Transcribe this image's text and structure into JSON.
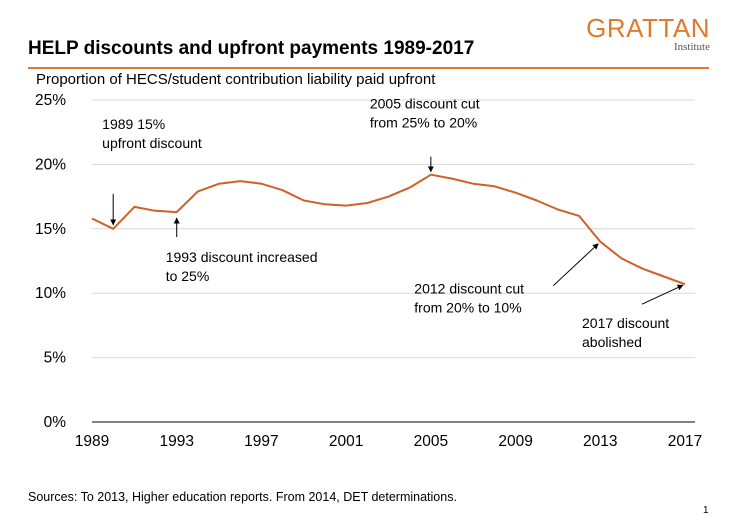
{
  "header": {
    "title": "HELP discounts and upfront payments 1989-2017",
    "subtitle": "Proportion of HECS/student contribution liability paid upfront",
    "logo_main": "GRATTAN",
    "logo_sub": "Institute"
  },
  "footer": {
    "source": "Sources: To 2013, Higher education reports. From 2014, DET determinations.",
    "page_number": "1"
  },
  "colors": {
    "line": "#d0602a",
    "accent": "#e07b2e",
    "gridline": "#d9d9d9"
  },
  "chart_data": {
    "type": "line",
    "title": "HELP discounts and upfront payments 1989-2017",
    "xlabel": "",
    "ylabel": "Proportion of HECS/student contribution liability paid upfront",
    "xlim": [
      1989,
      2017
    ],
    "ylim": [
      0,
      25
    ],
    "x_ticks": [
      "1989",
      "1993",
      "1997",
      "2001",
      "2005",
      "2009",
      "2013",
      "2017"
    ],
    "y_ticks": [
      "0%",
      "5%",
      "10%",
      "15%",
      "20%",
      "25%"
    ],
    "grid": "horizontal",
    "x": [
      1989,
      1990,
      1991,
      1992,
      1993,
      1994,
      1995,
      1996,
      1997,
      1998,
      1999,
      2000,
      2001,
      2002,
      2003,
      2004,
      2005,
      2006,
      2007,
      2008,
      2009,
      2010,
      2011,
      2012,
      2013,
      2014,
      2015,
      2016,
      2017
    ],
    "series": [
      {
        "values": [
          15.8,
          15.0,
          16.7,
          16.4,
          16.3,
          17.9,
          18.5,
          18.7,
          18.5,
          18.0,
          17.2,
          16.9,
          16.8,
          17.0,
          17.5,
          18.2,
          19.2,
          18.9,
          18.5,
          18.3,
          17.8,
          17.2,
          16.5,
          16.0,
          14.0,
          12.7,
          11.9,
          11.3,
          10.7
        ]
      }
    ],
    "annotations": [
      {
        "lines": [
          "1989 15%",
          "upfront discount"
        ],
        "x": 1990,
        "y": 15.0
      },
      {
        "lines": [
          "1993 discount increased",
          "to 25%"
        ],
        "x": 1993,
        "y": 16.3
      },
      {
        "lines": [
          "2005 discount cut",
          "from 25% to 20%"
        ],
        "x": 2005,
        "y": 19.2
      },
      {
        "lines": [
          "2012 discount cut",
          "from 20% to 10%"
        ],
        "x": 2013,
        "y": 14.0
      },
      {
        "lines": [
          "2017 discount",
          "abolished"
        ],
        "x": 2017,
        "y": 10.7
      }
    ]
  }
}
